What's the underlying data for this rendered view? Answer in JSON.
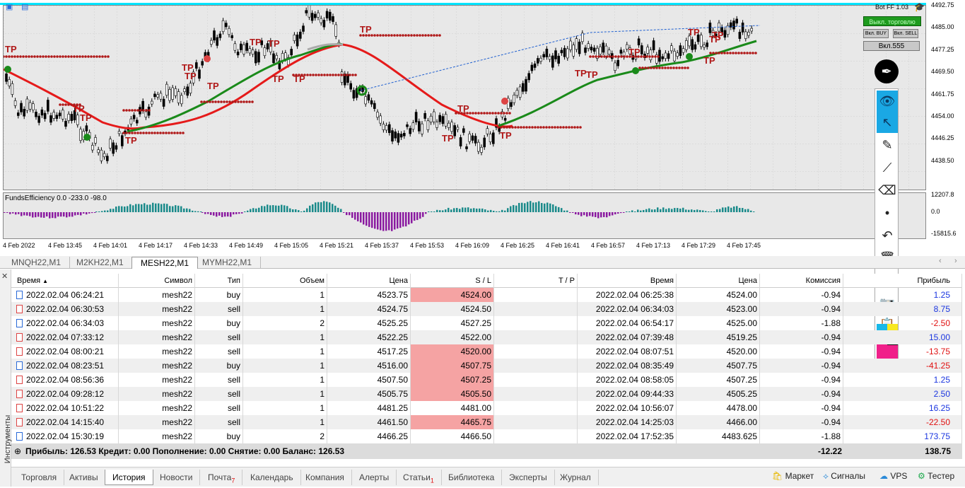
{
  "chart": {
    "bot_title": "Bot FF  1.03",
    "btn_trading": "Выкл. торговлю",
    "btn_buy": "Вкл. BUY",
    "btn_sell": "Вкл. SELL",
    "btn_555": "Вкл.555",
    "indicator_label": "FundsEfficiency 0.0 -233.0 -98.0",
    "price_labels": [
      "4492.75",
      "4485.00",
      "4477.25",
      "4469.50",
      "4461.75",
      "4454.00",
      "4446.25",
      "4438.50"
    ],
    "sub_labels": [
      "12207.8",
      "0.0",
      "-15815.6"
    ],
    "time_labels": [
      "4 Feb 2022",
      "4 Feb 13:45",
      "4 Feb 14:01",
      "4 Feb 14:17",
      "4 Feb 14:33",
      "4 Feb 14:49",
      "4 Feb 15:05",
      "4 Feb 15:21",
      "4 Feb 15:37",
      "4 Feb 15:53",
      "4 Feb 16:09",
      "4 Feb 16:25",
      "4 Feb 16:41",
      "4 Feb 16:57",
      "4 Feb 17:13",
      "4 Feb 17:29",
      "4 Feb 17:45"
    ],
    "tp_label": "TP"
  },
  "chart_tabs": [
    "MNQH22,M1",
    "M2KH22,M1",
    "MESH22,M1",
    "MYMH22,M1"
  ],
  "active_chart_tab": "MESH22,M1",
  "columns": [
    "Время",
    "Символ",
    "Тип",
    "Объем",
    "Цена",
    "S / L",
    "T / P",
    "Время",
    "Цена",
    "Комиссия",
    "Прибыль"
  ],
  "rows": [
    {
      "open": "2022.02.04 06:24:21",
      "sym": "mesh22",
      "type": "buy",
      "vol": "1",
      "price": "4523.75",
      "sl": "4524.00",
      "tp": "",
      "close": "2022.02.04 06:25:38",
      "cprice": "4524.00",
      "comm": "-0.94",
      "profit": "1.25"
    },
    {
      "open": "2022.02.04 06:30:53",
      "sym": "mesh22",
      "type": "sell",
      "vol": "1",
      "price": "4524.75",
      "sl": "4524.50",
      "tp": "",
      "close": "2022.02.04 06:34:03",
      "cprice": "4523.00",
      "comm": "-0.94",
      "profit": "8.75"
    },
    {
      "open": "2022.02.04 06:34:03",
      "sym": "mesh22",
      "type": "buy",
      "vol": "2",
      "price": "4525.25",
      "sl": "4527.25",
      "tp": "",
      "close": "2022.02.04 06:54:17",
      "cprice": "4525.00",
      "comm": "-1.88",
      "profit": "-2.50"
    },
    {
      "open": "2022.02.04 07:33:12",
      "sym": "mesh22",
      "type": "sell",
      "vol": "1",
      "price": "4522.25",
      "sl": "4522.00",
      "tp": "",
      "close": "2022.02.04 07:39:48",
      "cprice": "4519.25",
      "comm": "-0.94",
      "profit": "15.00"
    },
    {
      "open": "2022.02.04 08:00:21",
      "sym": "mesh22",
      "type": "sell",
      "vol": "1",
      "price": "4517.25",
      "sl": "4520.00",
      "tp": "",
      "close": "2022.02.04 08:07:51",
      "cprice": "4520.00",
      "comm": "-0.94",
      "profit": "-13.75"
    },
    {
      "open": "2022.02.04 08:23:51",
      "sym": "mesh22",
      "type": "buy",
      "vol": "1",
      "price": "4516.00",
      "sl": "4507.75",
      "tp": "",
      "close": "2022.02.04 08:35:49",
      "cprice": "4507.75",
      "comm": "-0.94",
      "profit": "-41.25"
    },
    {
      "open": "2022.02.04 08:56:36",
      "sym": "mesh22",
      "type": "sell",
      "vol": "1",
      "price": "4507.50",
      "sl": "4507.25",
      "tp": "",
      "close": "2022.02.04 08:58:05",
      "cprice": "4507.25",
      "comm": "-0.94",
      "profit": "1.25"
    },
    {
      "open": "2022.02.04 09:28:12",
      "sym": "mesh22",
      "type": "sell",
      "vol": "1",
      "price": "4505.75",
      "sl": "4505.50",
      "tp": "",
      "close": "2022.02.04 09:44:33",
      "cprice": "4505.25",
      "comm": "-0.94",
      "profit": "2.50"
    },
    {
      "open": "2022.02.04 10:51:22",
      "sym": "mesh22",
      "type": "sell",
      "vol": "1",
      "price": "4481.25",
      "sl": "4481.00",
      "tp": "",
      "close": "2022.02.04 10:56:07",
      "cprice": "4478.00",
      "comm": "-0.94",
      "profit": "16.25"
    },
    {
      "open": "2022.02.04 14:15:40",
      "sym": "mesh22",
      "type": "sell",
      "vol": "1",
      "price": "4461.50",
      "sl": "4465.75",
      "tp": "",
      "close": "2022.02.04 14:25:03",
      "cprice": "4466.00",
      "comm": "-0.94",
      "profit": "-22.50"
    },
    {
      "open": "2022.02.04 15:30:19",
      "sym": "mesh22",
      "type": "buy",
      "vol": "2",
      "price": "4466.25",
      "sl": "4466.50",
      "tp": "",
      "close": "2022.02.04 17:52:35",
      "cprice": "4483.625",
      "comm": "-1.88",
      "profit": "173.75"
    }
  ],
  "summary": {
    "text": "Прибыль: 126.53  Кредит: 0.00  Пополнение: 0.00  Снятие: 0.00  Баланс: 126.53",
    "commission": "-12.22",
    "profit": "138.75"
  },
  "side_label": "Инструменты",
  "bottom_tabs": [
    "Торговля",
    "Активы",
    "История",
    "Новости",
    "Почта",
    "Календарь",
    "Компания",
    "Алерты",
    "Статьи",
    "Библиотека",
    "Эксперты",
    "Журнал"
  ],
  "mail_badge": "7",
  "articles_badge": "1",
  "right_links": [
    "Маркет",
    "Сигналы",
    "VPS",
    "Тестер"
  ]
}
